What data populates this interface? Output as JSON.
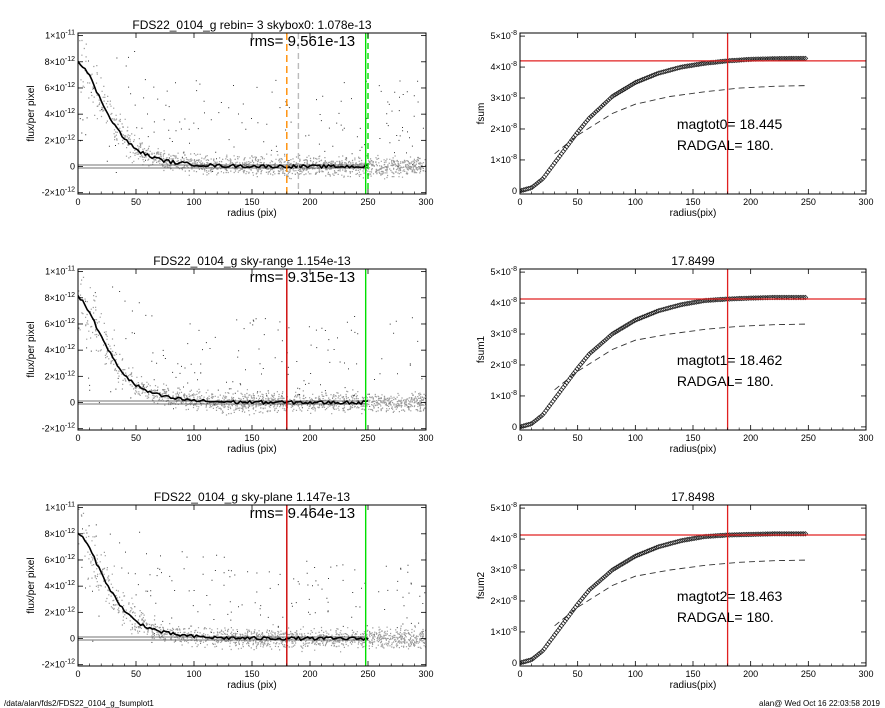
{
  "chart_data": [
    {
      "type": "scatter",
      "title": "FDS22_0104_g rebin= 3    skybox0:  1.078e-13",
      "rms_label": "rms= 9.561e-13",
      "xlabel": "radius (pix)",
      "ylabel": "flux/per pixel",
      "xlim": [
        0,
        300
      ],
      "ylim": [
        -2.1e-12,
        1.02e-11
      ],
      "x_ticks": [
        "0",
        "50",
        "100",
        "150",
        "200",
        "250",
        "300"
      ],
      "y_ticks": [
        {
          "v": 1e-11,
          "label": "1×10",
          "exp": "-11"
        },
        {
          "v": 8e-12,
          "label": "8×10",
          "exp": "-12"
        },
        {
          "v": 6e-12,
          "label": "6×10",
          "exp": "-12"
        },
        {
          "v": 4e-12,
          "label": "4×10",
          "exp": "-12"
        },
        {
          "v": 2e-12,
          "label": "2×10",
          "exp": "-12"
        },
        {
          "v": 0,
          "label": "0",
          "exp": ""
        },
        {
          "v": -2e-12,
          "label": "-2×10",
          "exp": "-12"
        }
      ],
      "profile": {
        "x": [
          0,
          5,
          10,
          20,
          30,
          40,
          50,
          60,
          70,
          80,
          100,
          120,
          150,
          200,
          250
        ],
        "y": [
          8.1e-12,
          7.6e-12,
          6.9e-12,
          5e-12,
          3.4e-12,
          2.1e-12,
          1.3e-12,
          8.5e-13,
          5.5e-13,
          3.5e-13,
          1.5e-13,
          6e-14,
          2e-14,
          0,
          0
        ]
      },
      "vlines": [
        {
          "x": 180,
          "color": "#ff8c00",
          "dash": "7,4"
        },
        {
          "x": 190,
          "color": "#bbbbbb",
          "dash": "6,4"
        },
        {
          "x": 248,
          "color": "#00e000",
          "dash": ""
        },
        {
          "x": 250,
          "color": "#00e000",
          "dash": "6,4"
        }
      ]
    },
    {
      "type": "line",
      "title": "",
      "xlabel": "radius(pix)",
      "ylabel": "fsum",
      "xlim": [
        0,
        300
      ],
      "ylim": [
        -1e-09,
        5.1e-08
      ],
      "x_ticks": [
        "0",
        "50",
        "100",
        "150",
        "200",
        "250",
        "300"
      ],
      "y_ticks": [
        {
          "v": 5e-08,
          "label": "5×10",
          "exp": "-8"
        },
        {
          "v": 4e-08,
          "label": "4×10",
          "exp": "-8"
        },
        {
          "v": 3e-08,
          "label": "3×10",
          "exp": "-8"
        },
        {
          "v": 2e-08,
          "label": "2×10",
          "exp": "-8"
        },
        {
          "v": 1e-08,
          "label": "1×10",
          "exp": "-8"
        },
        {
          "v": 0,
          "label": "0",
          "exp": ""
        }
      ],
      "curve": {
        "x": [
          0,
          10,
          20,
          30,
          40,
          50,
          60,
          80,
          100,
          120,
          140,
          160,
          180,
          200,
          220,
          248
        ],
        "y": [
          0,
          1e-09,
          4e-09,
          9e-09,
          1.4e-08,
          1.9e-08,
          2.35e-08,
          3.05e-08,
          3.5e-08,
          3.8e-08,
          4e-08,
          4.12e-08,
          4.2e-08,
          4.25e-08,
          4.27e-08,
          4.28e-08
        ]
      },
      "dashed_curve": {
        "x": [
          30,
          50,
          80,
          100,
          130,
          160,
          190,
          220,
          248
        ],
        "y": [
          1.2e-08,
          1.8e-08,
          2.5e-08,
          2.8e-08,
          3.05e-08,
          3.2e-08,
          3.32e-08,
          3.38e-08,
          3.4e-08
        ]
      },
      "hline": 4.2e-08,
      "vline": 180,
      "annotations": [
        "magtot0=  18.445",
        "RADGAL=    180."
      ]
    },
    {
      "type": "scatter",
      "title": "FDS22_0104_g sky-range  1.154e-13",
      "rms_label": "rms= 9.315e-13",
      "xlabel": "radius (pix)",
      "ylabel": "flux/per pixel",
      "xlim": [
        0,
        300
      ],
      "ylim": [
        -2.1e-12,
        1.02e-11
      ],
      "x_ticks": [
        "0",
        "50",
        "100",
        "150",
        "200",
        "250",
        "300"
      ],
      "y_ticks": [
        {
          "v": 1e-11,
          "label": "1×10",
          "exp": "-11"
        },
        {
          "v": 8e-12,
          "label": "8×10",
          "exp": "-12"
        },
        {
          "v": 6e-12,
          "label": "6×10",
          "exp": "-12"
        },
        {
          "v": 4e-12,
          "label": "4×10",
          "exp": "-12"
        },
        {
          "v": 2e-12,
          "label": "2×10",
          "exp": "-12"
        },
        {
          "v": 0,
          "label": "0",
          "exp": ""
        },
        {
          "v": -2e-12,
          "label": "-2×10",
          "exp": "-12"
        }
      ],
      "profile": {
        "x": [
          0,
          5,
          10,
          20,
          30,
          40,
          50,
          60,
          70,
          80,
          100,
          120,
          150,
          200,
          250
        ],
        "y": [
          8.1e-12,
          7.6e-12,
          6.9e-12,
          5e-12,
          3.4e-12,
          2.1e-12,
          1.3e-12,
          8.5e-13,
          5.5e-13,
          3.5e-13,
          1.5e-13,
          6e-14,
          2e-14,
          0,
          0
        ]
      },
      "vlines": [
        {
          "x": 180,
          "color": "#cc0000",
          "dash": ""
        },
        {
          "x": 248,
          "color": "#00e000",
          "dash": ""
        }
      ]
    },
    {
      "type": "line",
      "title": "17.8499",
      "xlabel": "radius(pix)",
      "ylabel": "fsum1",
      "xlim": [
        0,
        300
      ],
      "ylim": [
        -1e-09,
        5.1e-08
      ],
      "x_ticks": [
        "0",
        "50",
        "100",
        "150",
        "200",
        "250",
        "300"
      ],
      "y_ticks": [
        {
          "v": 5e-08,
          "label": "5×10",
          "exp": "-8"
        },
        {
          "v": 4e-08,
          "label": "4×10",
          "exp": "-8"
        },
        {
          "v": 3e-08,
          "label": "3×10",
          "exp": "-8"
        },
        {
          "v": 2e-08,
          "label": "2×10",
          "exp": "-8"
        },
        {
          "v": 1e-08,
          "label": "1×10",
          "exp": "-8"
        },
        {
          "v": 0,
          "label": "0",
          "exp": ""
        }
      ],
      "curve": {
        "x": [
          0,
          10,
          20,
          30,
          40,
          50,
          60,
          80,
          100,
          120,
          140,
          160,
          180,
          200,
          220,
          248
        ],
        "y": [
          0,
          1e-09,
          4e-09,
          9e-09,
          1.4e-08,
          1.9e-08,
          2.35e-08,
          3e-08,
          3.45e-08,
          3.75e-08,
          3.95e-08,
          4.08e-08,
          4.13e-08,
          4.16e-08,
          4.18e-08,
          4.18e-08
        ]
      },
      "dashed_curve": {
        "x": [
          30,
          50,
          80,
          100,
          130,
          160,
          190,
          220,
          248
        ],
        "y": [
          1.2e-08,
          1.8e-08,
          2.5e-08,
          2.8e-08,
          3e-08,
          3.15e-08,
          3.25e-08,
          3.3e-08,
          3.32e-08
        ]
      },
      "hline": 4.13e-08,
      "vline": 180,
      "annotations": [
        "magtot1=  18.462",
        "RADGAL=    180."
      ]
    },
    {
      "type": "scatter",
      "title": "FDS22_0104_g sky-plane  1.147e-13",
      "rms_label": "rms= 9.464e-13",
      "xlabel": "radius (pix)",
      "ylabel": "flux/per pixel",
      "xlim": [
        0,
        300
      ],
      "ylim": [
        -2.1e-12,
        1.02e-11
      ],
      "x_ticks": [
        "0",
        "50",
        "100",
        "150",
        "200",
        "250",
        "300"
      ],
      "y_ticks": [
        {
          "v": 1e-11,
          "label": "1×10",
          "exp": "-11"
        },
        {
          "v": 8e-12,
          "label": "8×10",
          "exp": "-12"
        },
        {
          "v": 6e-12,
          "label": "6×10",
          "exp": "-12"
        },
        {
          "v": 4e-12,
          "label": "4×10",
          "exp": "-12"
        },
        {
          "v": 2e-12,
          "label": "2×10",
          "exp": "-12"
        },
        {
          "v": 0,
          "label": "0",
          "exp": ""
        },
        {
          "v": -2e-12,
          "label": "-2×10",
          "exp": "-12"
        }
      ],
      "profile": {
        "x": [
          0,
          5,
          10,
          20,
          30,
          40,
          50,
          60,
          70,
          80,
          100,
          120,
          150,
          200,
          250
        ],
        "y": [
          8.1e-12,
          7.6e-12,
          6.9e-12,
          5e-12,
          3.4e-12,
          2.1e-12,
          1.3e-12,
          8.5e-13,
          5.5e-13,
          3.5e-13,
          1.5e-13,
          6e-14,
          2e-14,
          0,
          0
        ]
      },
      "vlines": [
        {
          "x": 180,
          "color": "#cc0000",
          "dash": ""
        },
        {
          "x": 248,
          "color": "#00e000",
          "dash": ""
        }
      ]
    },
    {
      "type": "line",
      "title": "17.8498",
      "xlabel": "radius(pix)",
      "ylabel": "fsum2",
      "xlim": [
        0,
        300
      ],
      "ylim": [
        -1e-09,
        5.1e-08
      ],
      "x_ticks": [
        "0",
        "50",
        "100",
        "150",
        "200",
        "250",
        "300"
      ],
      "y_ticks": [
        {
          "v": 5e-08,
          "label": "5×10",
          "exp": "-8"
        },
        {
          "v": 4e-08,
          "label": "4×10",
          "exp": "-8"
        },
        {
          "v": 3e-08,
          "label": "3×10",
          "exp": "-8"
        },
        {
          "v": 2e-08,
          "label": "2×10",
          "exp": "-8"
        },
        {
          "v": 1e-08,
          "label": "1×10",
          "exp": "-8"
        },
        {
          "v": 0,
          "label": "0",
          "exp": ""
        }
      ],
      "curve": {
        "x": [
          0,
          10,
          20,
          30,
          40,
          50,
          60,
          80,
          100,
          120,
          140,
          160,
          180,
          200,
          220,
          248
        ],
        "y": [
          0,
          1e-09,
          4e-09,
          9e-09,
          1.4e-08,
          1.9e-08,
          2.35e-08,
          3e-08,
          3.45e-08,
          3.75e-08,
          3.95e-08,
          4.08e-08,
          4.13e-08,
          4.15e-08,
          4.17e-08,
          4.17e-08
        ]
      },
      "dashed_curve": {
        "x": [
          30,
          50,
          80,
          100,
          130,
          160,
          190,
          220,
          248
        ],
        "y": [
          1.2e-08,
          1.8e-08,
          2.5e-08,
          2.8e-08,
          3e-08,
          3.15e-08,
          3.25e-08,
          3.3e-08,
          3.32e-08
        ]
      },
      "hline": 4.13e-08,
      "vline": 180,
      "annotations": [
        "magtot2=  18.463",
        "RADGAL=    180."
      ]
    }
  ],
  "footer": {
    "left": "/data/alan/fds2/FDS22_0104_g_fsumplot1",
    "right": "alan@  Wed Oct 16 22:03:58 2019"
  },
  "colors": {
    "scatter_gray": "#9a9a9a",
    "scatter_dark": "#333333",
    "profile": "#000000",
    "red": "#e02020",
    "green": "#00e000",
    "orange": "#ff8c00"
  }
}
